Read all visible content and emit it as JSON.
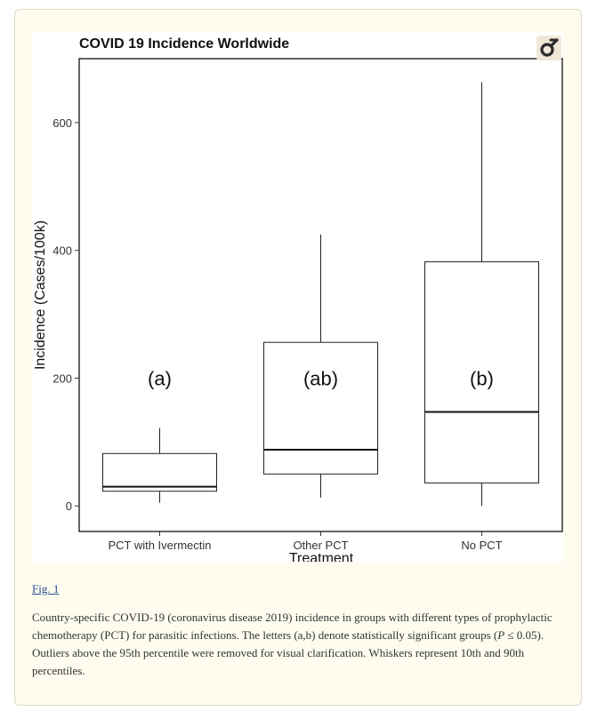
{
  "figure_link": "Fig. 1",
  "caption": {
    "part1": "Country-specific COVID-19 (coronavirus disease 2019) incidence in groups with different types of prophylactic chemotherapy (PCT) for parasitic infections. The letters (a,b) denote statistically significant groups (",
    "p_symbol": "P",
    "part2": " ≤ 0.05). Outliers above the 95th percentile were removed for visual clarification. Whiskers represent 10th and 90th percentiles."
  },
  "logo_icon": "gender-symbol-icon",
  "colors": {
    "card_bg": "#fdfcef",
    "link": "#2a4d8f",
    "logo": "#2b2b2b"
  },
  "chart_data": {
    "type": "box",
    "title": "COVID 19 Incidence Worldwide",
    "xlabel": "Treatment",
    "ylabel": "Incidence (Cases/100k)",
    "ylim": [
      -40,
      700
    ],
    "yticks": [
      0,
      200,
      400,
      600
    ],
    "grid": false,
    "categories": [
      "PCT with Ivermectin",
      "Other PCT",
      "No PCT"
    ],
    "boxes": [
      {
        "whisker_low": 5,
        "q1": 23,
        "median": 30,
        "q3": 82,
        "whisker_high": 122,
        "annotation": "(a)"
      },
      {
        "whisker_low": 13,
        "q1": 50,
        "median": 88,
        "q3": 256,
        "whisker_high": 425,
        "annotation": "(ab)"
      },
      {
        "whisker_low": 0,
        "q1": 36,
        "median": 147,
        "q3": 382,
        "whisker_high": 663,
        "annotation": "(b)"
      }
    ]
  }
}
